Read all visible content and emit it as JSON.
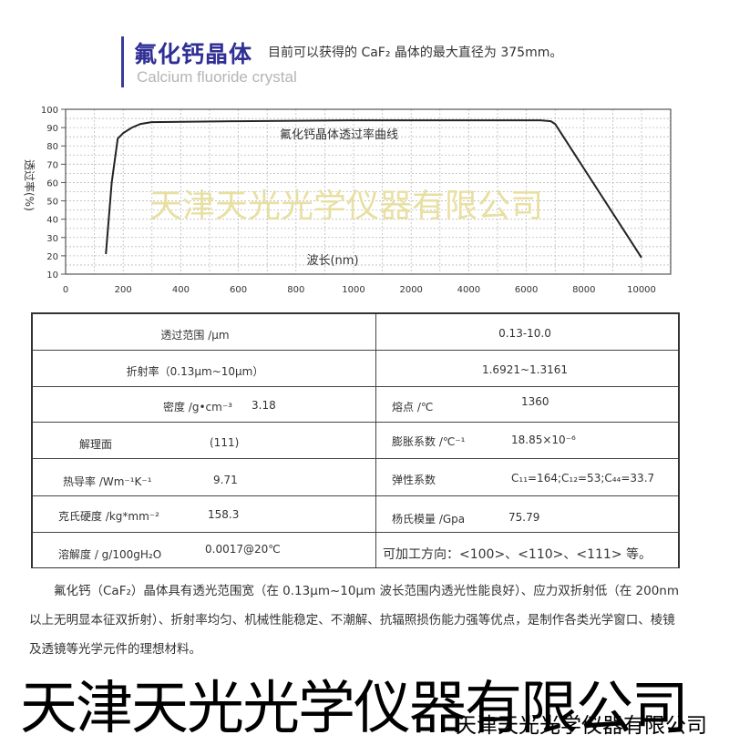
{
  "header": {
    "title_cn": "氟化钙晶体",
    "description": "目前可以获得的 CaF₂ 晶体的最大直径为 375mm。",
    "title_en": "Calcium fluoride crystal"
  },
  "chart_data": {
    "type": "line",
    "title": "氟化钙晶体透过率曲线",
    "xlabel": "波长(nm)",
    "ylabel": "透过率(%)",
    "x_ticks": [
      0,
      200,
      400,
      600,
      800,
      1000,
      2000,
      4000,
      6000,
      8000,
      10000
    ],
    "x_scale": "non-uniform (equal spacing between listed ticks)",
    "y_ticks": [
      10,
      20,
      30,
      40,
      50,
      60,
      70,
      80,
      90,
      100
    ],
    "ylim": [
      10,
      100
    ],
    "grid": true,
    "watermark": "天津天光光学仪器有限公司",
    "series": [
      {
        "x": [
          140,
          160,
          181,
          200,
          230,
          260,
          298,
          600,
          1000,
          2000,
          4000,
          6000,
          6500,
          6850,
          7000,
          10000
        ],
        "y": [
          21,
          60,
          84,
          87,
          90,
          92,
          93,
          93.5,
          94,
          94,
          94,
          94,
          94,
          93.5,
          92,
          19
        ]
      }
    ]
  },
  "table": {
    "rows": [
      {
        "left_label": "透过范围 /μm",
        "right_value": "0.13-10.0"
      },
      {
        "left_label": "折射率（0.13μm~10μm）",
        "right_value": "1.6921~1.3161"
      },
      {
        "left_label": "密度 /g•cm⁻³",
        "left_value": "3.18",
        "right_label": "熔点 /℃",
        "right_value": "1360"
      },
      {
        "left_label": "解理面",
        "left_value": "(111)",
        "right_label": "膨胀系数 /℃⁻¹",
        "right_value": "18.85×10⁻⁶"
      },
      {
        "left_label": "热导率 /Wm⁻¹K⁻¹",
        "left_value": "9.71",
        "right_label": "弹性系数",
        "right_value": "C₁₁=164;C₁₂=53;C₄₄=33.7"
      },
      {
        "left_label": "克氏硬度 /kg*mm⁻²",
        "left_value": "158.3",
        "right_label": "杨氏模量 /Gpa",
        "right_value": "75.79"
      },
      {
        "left_label": "溶解度 / g/100gH₂O",
        "left_value": "0.0017@20℃",
        "right_text": "可加工方向：<100>、<110>、<111> 等。"
      }
    ]
  },
  "paragraph": "氟化钙（CaF₂）晶体具有透光范围宽（在 0.13μm~10μm 波长范围内透光性能良好）、应力双折射低（在 200nm 以上无明显本征双折射）、折射率均匀、机械性能稳定、不潮解、抗辐照损伤能力强等优点，是制作各类光学窗口、棱镜及透镜等光学元件的理想材料。",
  "watermarks": {
    "large": "天津天光光学仪器有限公司",
    "small": "天津天光光学仪器有限公司"
  },
  "colors": {
    "title": "#2f2f95",
    "watermark_chart": "#e8dfa0",
    "curve": "#222222"
  }
}
